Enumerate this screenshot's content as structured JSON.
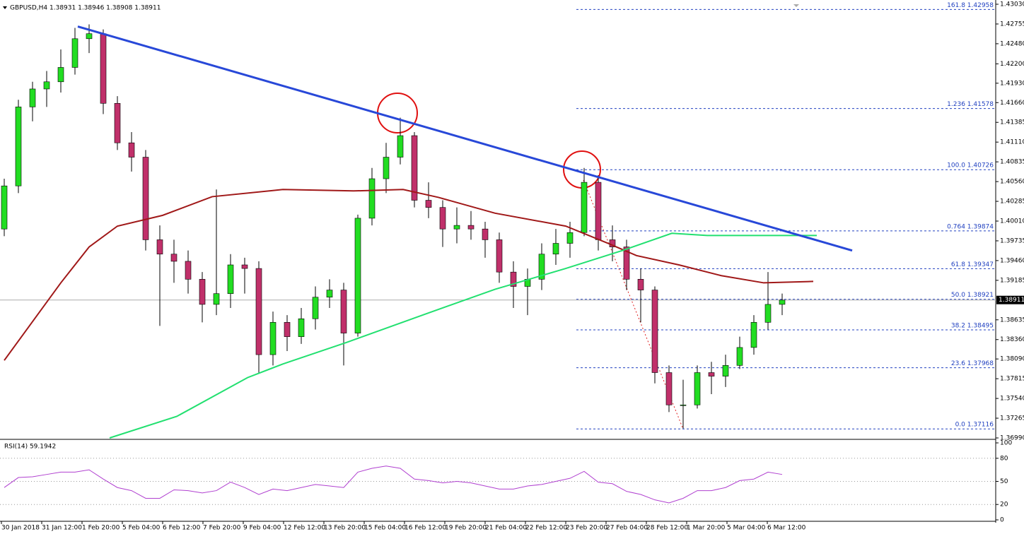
{
  "chart_data": [
    {
      "type": "candlestick",
      "title": "GBPUSD,H4  1.38931 1.38946 1.38908 1.38911",
      "ylim": [
        1.3699,
        1.4303
      ],
      "yticks": [
        {
          "value": 1.4303,
          "label": "1.43030"
        },
        {
          "value": 1.42755,
          "label": "1.42755"
        },
        {
          "value": 1.4248,
          "label": "1.42480"
        },
        {
          "value": 1.422,
          "label": "1.42200"
        },
        {
          "value": 1.4193,
          "label": "1.41930"
        },
        {
          "value": 1.4166,
          "label": "1.41660"
        },
        {
          "value": 1.41385,
          "label": "1.41385"
        },
        {
          "value": 1.4111,
          "label": "1.41110"
        },
        {
          "value": 1.40835,
          "label": "1.40835"
        },
        {
          "value": 1.4056,
          "label": "1.40560"
        },
        {
          "value": 1.40285,
          "label": "1.40285"
        },
        {
          "value": 1.4001,
          "label": "1.40010"
        },
        {
          "value": 1.39735,
          "label": "1.39735"
        },
        {
          "value": 1.3946,
          "label": "1.39460"
        },
        {
          "value": 1.39185,
          "label": "1.39185"
        },
        {
          "value": 1.38635,
          "label": "1.38635"
        },
        {
          "value": 1.3836,
          "label": "1.38360"
        },
        {
          "value": 1.3809,
          "label": "1.38090"
        },
        {
          "value": 1.37815,
          "label": "1.37815"
        },
        {
          "value": 1.3754,
          "label": "1.37540"
        },
        {
          "value": 1.37265,
          "label": "1.37265"
        },
        {
          "value": 1.3699,
          "label": "1.36990"
        }
      ],
      "categories": [
        "30 Jan 2018",
        "31 Jan 12:00",
        "1 Feb 20:00",
        "5 Feb 04:00",
        "6 Feb 12:00",
        "7 Feb 20:00",
        "9 Feb 04:00",
        "12 Feb 12:00",
        "13 Feb 20:00",
        "15 Feb 04:00",
        "16 Feb 12:00",
        "19 Feb 20:00",
        "21 Feb 04:00",
        "22 Feb 12:00",
        "23 Feb 20:00",
        "27 Feb 04:00",
        "28 Feb 12:00",
        "1 Mar 20:00",
        "5 Mar 04:00",
        "6 Mar 12:00"
      ],
      "bull_color": "#22dd22",
      "bear_color": "#c0306a",
      "candles": [
        [
          1.399,
          1.406,
          1.398,
          1.405
        ],
        [
          1.405,
          1.417,
          1.404,
          1.416
        ],
        [
          1.416,
          1.4195,
          1.414,
          1.4185
        ],
        [
          1.4185,
          1.421,
          1.416,
          1.4195
        ],
        [
          1.4195,
          1.424,
          1.418,
          1.4215
        ],
        [
          1.4215,
          1.427,
          1.4205,
          1.4255
        ],
        [
          1.4255,
          1.4275,
          1.4235,
          1.4262
        ],
        [
          1.4262,
          1.4268,
          1.415,
          1.4165
        ],
        [
          1.4165,
          1.4175,
          1.41,
          1.411
        ],
        [
          1.411,
          1.4125,
          1.407,
          1.409
        ],
        [
          1.409,
          1.41,
          1.396,
          1.3975
        ],
        [
          1.3975,
          1.3995,
          1.3855,
          1.3955
        ],
        [
          1.3955,
          1.3975,
          1.3915,
          1.3945
        ],
        [
          1.3945,
          1.396,
          1.39,
          1.392
        ],
        [
          1.392,
          1.393,
          1.386,
          1.3885
        ],
        [
          1.3885,
          1.4045,
          1.387,
          1.39
        ],
        [
          1.39,
          1.3955,
          1.388,
          1.394
        ],
        [
          1.394,
          1.395,
          1.39,
          1.3935
        ],
        [
          1.3935,
          1.3945,
          1.379,
          1.3815
        ],
        [
          1.3815,
          1.3875,
          1.38,
          1.386
        ],
        [
          1.386,
          1.387,
          1.382,
          1.384
        ],
        [
          1.384,
          1.388,
          1.383,
          1.3865
        ],
        [
          1.3865,
          1.391,
          1.385,
          1.3895
        ],
        [
          1.3895,
          1.392,
          1.388,
          1.3905
        ],
        [
          1.3905,
          1.3915,
          1.38,
          1.3845
        ],
        [
          1.3845,
          1.401,
          1.384,
          1.4005
        ],
        [
          1.4005,
          1.4075,
          1.3995,
          1.406
        ],
        [
          1.406,
          1.411,
          1.404,
          1.409
        ],
        [
          1.409,
          1.4145,
          1.408,
          1.412
        ],
        [
          1.412,
          1.4125,
          1.402,
          1.403
        ],
        [
          1.403,
          1.4055,
          1.4005,
          1.402
        ],
        [
          1.402,
          1.403,
          1.3965,
          1.399
        ],
        [
          1.399,
          1.402,
          1.397,
          1.3995
        ],
        [
          1.3995,
          1.4015,
          1.3975,
          1.399
        ],
        [
          1.399,
          1.4,
          1.395,
          1.3975
        ],
        [
          1.3975,
          1.3985,
          1.3915,
          1.393
        ],
        [
          1.393,
          1.3945,
          1.388,
          1.391
        ],
        [
          1.391,
          1.3935,
          1.387,
          1.392
        ],
        [
          1.392,
          1.397,
          1.3905,
          1.3955
        ],
        [
          1.3955,
          1.399,
          1.394,
          1.397
        ],
        [
          1.397,
          1.4,
          1.395,
          1.3985
        ],
        [
          1.3985,
          1.4075,
          1.398,
          1.4055
        ],
        [
          1.4055,
          1.4065,
          1.396,
          1.3975
        ],
        [
          1.3975,
          1.3995,
          1.3945,
          1.3965
        ],
        [
          1.3965,
          1.3975,
          1.3905,
          1.392
        ],
        [
          1.392,
          1.3935,
          1.386,
          1.3905
        ],
        [
          1.3905,
          1.391,
          1.3775,
          1.379
        ],
        [
          1.379,
          1.38,
          1.3735,
          1.3745
        ],
        [
          1.3745,
          1.378,
          1.3712,
          1.3745
        ],
        [
          1.3745,
          1.38,
          1.374,
          1.379
        ],
        [
          1.379,
          1.3805,
          1.376,
          1.3785
        ],
        [
          1.3785,
          1.3815,
          1.377,
          1.38
        ],
        [
          1.38,
          1.384,
          1.3795,
          1.3825
        ],
        [
          1.3825,
          1.387,
          1.3815,
          1.386
        ],
        [
          1.386,
          1.393,
          1.385,
          1.3885
        ],
        [
          1.3885,
          1.39,
          1.387,
          1.3891
        ]
      ],
      "series": [
        {
          "color": "#a01818",
          "x": [
            0,
            2,
            4,
            6,
            8,
            11.2,
            14.7,
            19.7,
            24.7,
            28.2,
            30.7,
            34.7,
            39.7,
            42.7,
            44.7,
            47.7,
            50.7,
            53.7,
            57.2
          ],
          "values": [
            1.3807,
            1.3861,
            1.3915,
            1.3965,
            1.3994,
            1.4009,
            1.4035,
            1.4045,
            1.4043,
            1.4045,
            1.4034,
            1.4012,
            1.3994,
            1.397,
            1.3953,
            1.394,
            1.3925,
            1.3915,
            1.3917
          ]
        },
        {
          "color": "#22e070",
          "x": [
            7.45,
            12.2,
            17.2,
            19.7,
            24.2,
            29.7,
            34.7,
            39.7,
            43.7,
            47.2,
            49.7,
            57.45
          ],
          "values": [
            1.3699,
            1.3729,
            1.3783,
            1.3802,
            1.3832,
            1.3871,
            1.3906,
            1.3935,
            1.396,
            1.3984,
            1.3981,
            1.3981
          ]
        }
      ],
      "trendline": {
        "color": "#2848d8",
        "x": [
          5.2,
          59.95
        ],
        "values": [
          1.4272,
          1.396
        ]
      },
      "fib": [
        {
          "label": "161.8 1.42958",
          "value": 1.42958
        },
        {
          "label": "1.236 1.41578",
          "value": 1.41578
        },
        {
          "label": "100.0 1.40726",
          "value": 1.40726
        },
        {
          "label": "0.764 1.39874",
          "value": 1.39874
        },
        {
          "label": "61.8 1.39347",
          "value": 1.39347
        },
        {
          "label": "50.0 1.38921",
          "value": 1.38921
        },
        {
          "label": "38.2 1.38495",
          "value": 1.38495
        },
        {
          "label": "23.6 1.37968",
          "value": 1.37968
        },
        {
          "label": "0.0 1.37116",
          "value": 1.37116
        }
      ],
      "last_price": {
        "value": 1.38911,
        "label": "1.38911"
      }
    },
    {
      "type": "line",
      "title": "RSI(14) 59.1942",
      "ylim": [
        0,
        100
      ],
      "yticks": [
        100,
        80,
        50,
        20,
        0
      ],
      "levels": [
        80,
        50,
        20
      ],
      "color": "#b040d0",
      "values": [
        42,
        55,
        56,
        59,
        62,
        62,
        65,
        53,
        42,
        38,
        28,
        28,
        39,
        38,
        35,
        38,
        49,
        42,
        33,
        40,
        38,
        42,
        46,
        44,
        42,
        62,
        67,
        70,
        67,
        53,
        51,
        48,
        50,
        48,
        44,
        40,
        40,
        44,
        46,
        50,
        54,
        63,
        49,
        47,
        37,
        33,
        26,
        22,
        28,
        38,
        38,
        42,
        51,
        53,
        62,
        59
      ]
    }
  ]
}
